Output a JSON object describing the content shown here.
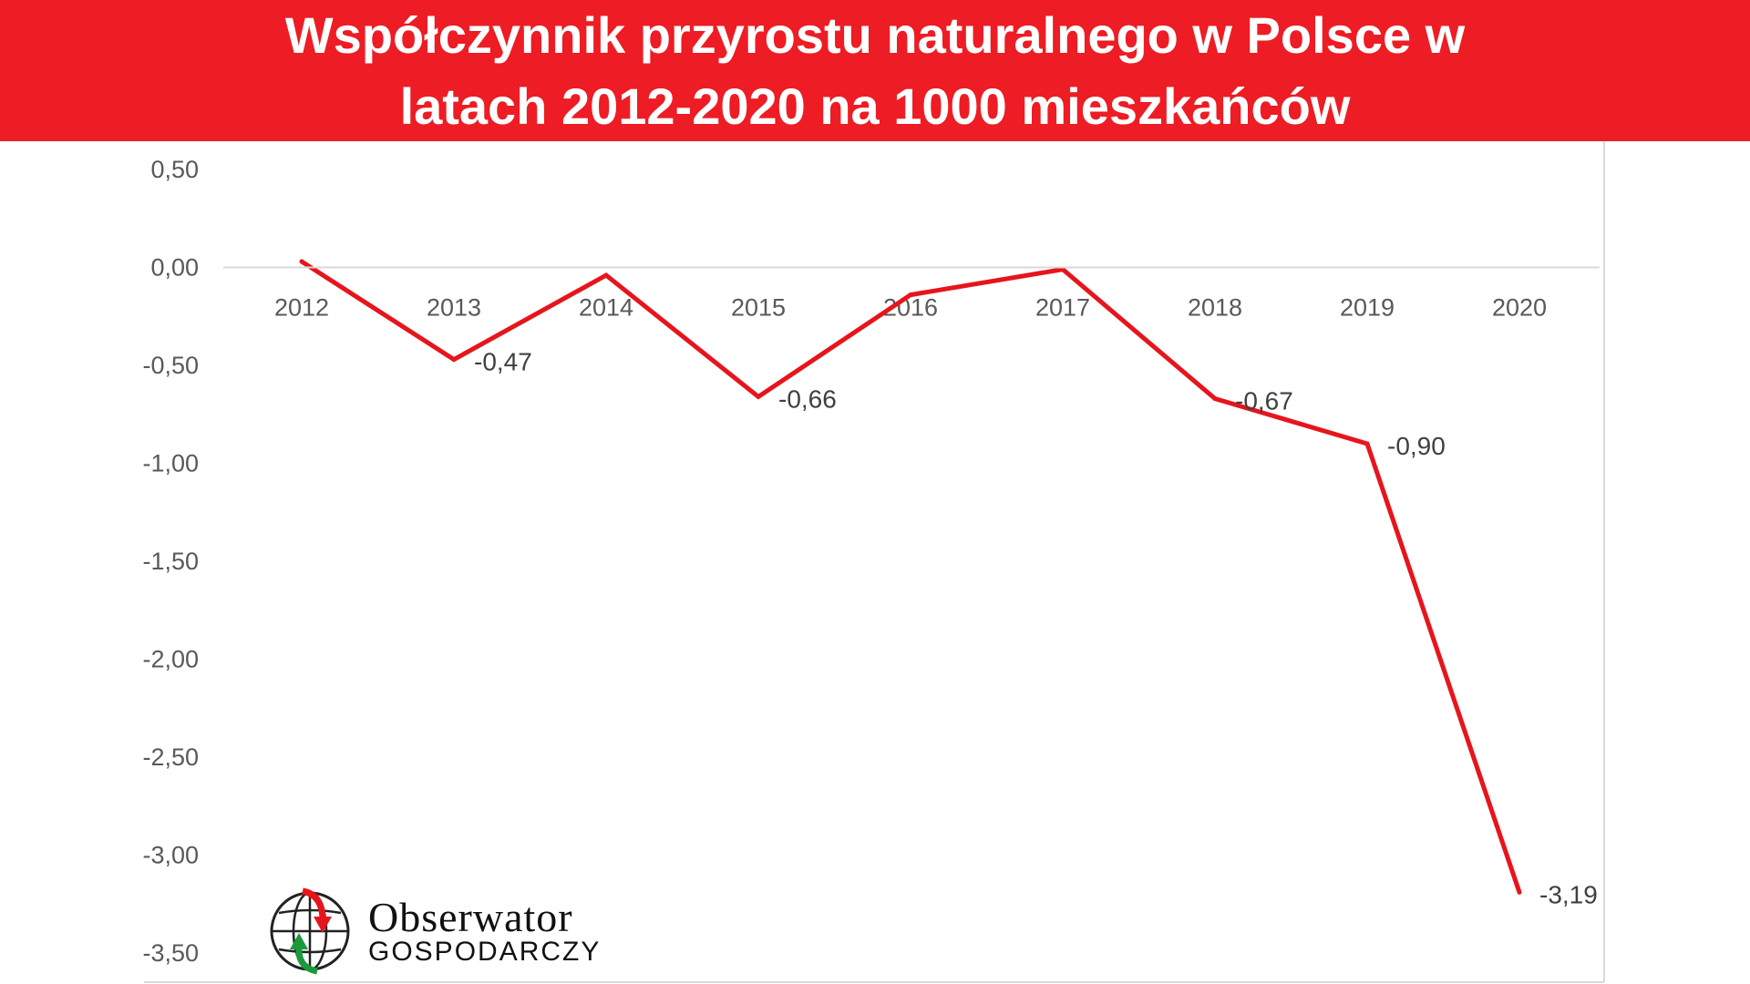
{
  "title": {
    "line1": "Współczynnik przyrostu naturalnego w Polsce w",
    "line2": "latach 2012-2020 na 1000 mieszkańców"
  },
  "colors": {
    "banner": "#ee1c24",
    "series": "#e8141c",
    "axis_text": "#595959",
    "gridline": "#d9d9d9"
  },
  "chart_data": {
    "type": "line",
    "title": "Współczynnik przyrostu naturalnego w Polsce w latach 2012-2020 na 1000 mieszkańców",
    "xlabel": "",
    "ylabel": "",
    "categories": [
      "2012",
      "2013",
      "2014",
      "2015",
      "2016",
      "2017",
      "2018",
      "2019",
      "2020"
    ],
    "series": [
      {
        "name": "Współczynnik przyrostu naturalnego",
        "values": [
          0.03,
          -0.47,
          -0.04,
          -0.66,
          -0.14,
          -0.01,
          -0.67,
          -0.9,
          -3.19
        ],
        "data_labels": [
          "",
          "-0,47",
          "",
          "-0,66",
          "",
          "",
          "-0,67",
          "-0,90",
          "-3,19"
        ]
      }
    ],
    "y_ticks": [
      0.5,
      0.0,
      -0.5,
      -1.0,
      -1.5,
      -2.0,
      -2.5,
      -3.0,
      -3.5
    ],
    "y_tick_labels": [
      "0,50",
      "0,00",
      "-0,50",
      "-1,00",
      "-1,50",
      "-2,00",
      "-2,50",
      "-3,00",
      "-3,50"
    ],
    "ylim": [
      -3.5,
      0.5
    ],
    "grid": false
  },
  "logo": {
    "line1": "Obserwator",
    "line2": "GOSPODARCZY",
    "icon": "globe-arrows-icon"
  }
}
